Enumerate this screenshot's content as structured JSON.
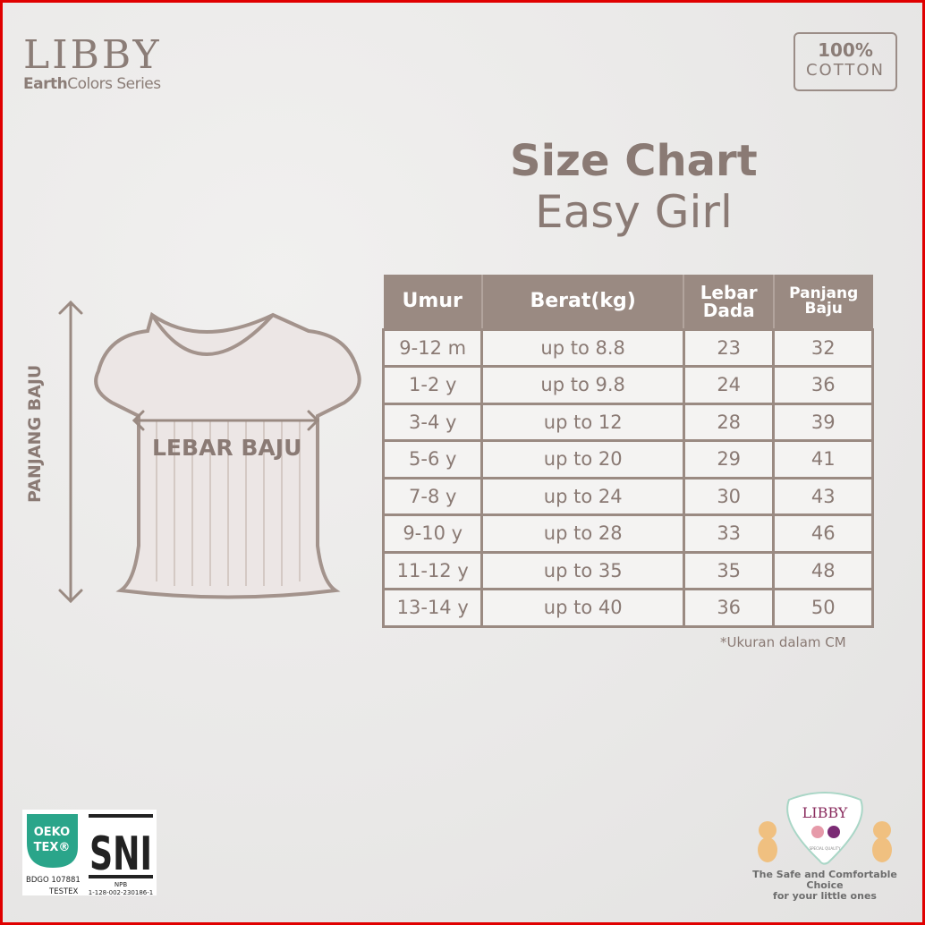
{
  "brand": {
    "name": "LIBBY",
    "series_bold": "Earth",
    "series_rest": "Colors Series"
  },
  "badge": {
    "percent": "100%",
    "material": "COTTON"
  },
  "title": "Size Chart",
  "subtitle": "Easy Girl",
  "table": {
    "headers": [
      "Umur",
      "Berat(kg)",
      "Lebar Dada",
      "Panjang Baju"
    ],
    "rows": [
      [
        "9-12 m",
        "up to 8.8",
        "23",
        "32"
      ],
      [
        "1-2 y",
        "up to 9.8",
        "24",
        "36"
      ],
      [
        "3-4 y",
        "up to 12",
        "28",
        "39"
      ],
      [
        "5-6 y",
        "up to 20",
        "29",
        "41"
      ],
      [
        "7-8 y",
        "up to 24",
        "30",
        "43"
      ],
      [
        "9-10 y",
        "up to 28",
        "33",
        "46"
      ],
      [
        "11-12 y",
        "up to 35",
        "35",
        "48"
      ],
      [
        "13-14 y",
        "up to 40",
        "36",
        "50"
      ]
    ]
  },
  "note": "*Ukuran dalam CM",
  "diagram": {
    "length_label": "PANJANG BAJU",
    "width_label": "LEBAR BAJU"
  },
  "certs": {
    "oeko_line1": "OEKO",
    "oeko_line2": "TEX®",
    "oeko_code": "BDGO 107881",
    "oeko_lab": "TESTEX",
    "sni": "SNI",
    "npb": "NPB",
    "npb_code": "1-128-002-230186-1"
  },
  "footer_logo": {
    "name": "LIBBY",
    "quality": "SPECIAL QUALITY",
    "tagline_1": "The Safe and Comfortable Choice",
    "tagline_2": "for your little ones"
  },
  "colors": {
    "primary": "#8a7a74",
    "header": "#9a8a82",
    "border": "#e00000",
    "oeko": "#2aa58a"
  }
}
